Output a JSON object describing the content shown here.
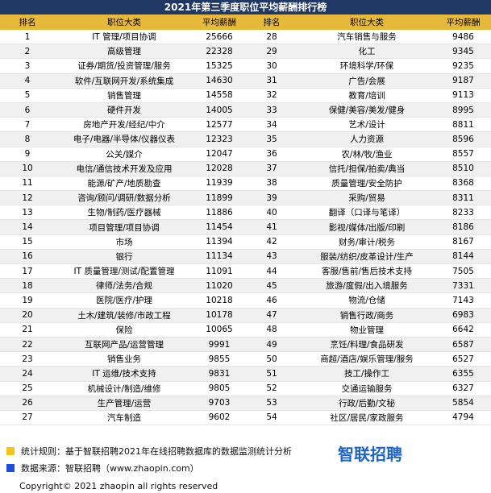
{
  "title": "2021年第三季度职位平均薪酬排行榜",
  "table": {
    "columns": [
      "排名",
      "职位大类",
      "平均薪酬",
      "排名",
      "职位大类",
      "平均薪酬"
    ],
    "rows": [
      [
        1,
        "IT 管理/项目协调",
        25666,
        28,
        "汽车销售与服务",
        9486
      ],
      [
        2,
        "高级管理",
        22328,
        29,
        "化工",
        9345
      ],
      [
        3,
        "证券/期货/投资管理/服务",
        15325,
        30,
        "环境科学/环保",
        9235
      ],
      [
        4,
        "软件/互联网开发/系统集成",
        14630,
        31,
        "广告/会展",
        9187
      ],
      [
        5,
        "销售管理",
        14558,
        32,
        "教育/培训",
        9113
      ],
      [
        6,
        "硬件开发",
        14005,
        33,
        "保健/美容/美发/健身",
        8995
      ],
      [
        7,
        "房地产开发/经纪/中介",
        12577,
        34,
        "艺术/设计",
        8811
      ],
      [
        8,
        "电子/电器/半导体/仪器仪表",
        12323,
        35,
        "人力资源",
        8596
      ],
      [
        9,
        "公关/媒介",
        12047,
        36,
        "农/林/牧/渔业",
        8557
      ],
      [
        10,
        "电信/通信技术开发及应用",
        12028,
        37,
        "信托/担保/拍卖/典当",
        8510
      ],
      [
        11,
        "能源/矿产/地质勘查",
        11939,
        38,
        "质量管理/安全防护",
        8368
      ],
      [
        12,
        "咨询/顾问/调研/数据分析",
        11899,
        39,
        "采购/贸易",
        8311
      ],
      [
        13,
        "生物/制药/医疗器械",
        11886,
        40,
        "翻译（口译与笔译）",
        8233
      ],
      [
        14,
        "项目管理/项目协调",
        11454,
        41,
        "影视/媒体/出版/印刷",
        8186
      ],
      [
        15,
        "市场",
        11394,
        42,
        "财务/审计/税务",
        8167
      ],
      [
        16,
        "银行",
        11134,
        43,
        "服装/纺织/皮革设计/生产",
        8144
      ],
      [
        17,
        "IT 质量管理/测试/配置管理",
        11091,
        44,
        "客服/售前/售后技术支持",
        7505
      ],
      [
        18,
        "律师/法务/合规",
        11020,
        45,
        "旅游/度假/出入境服务",
        7331
      ],
      [
        19,
        "医院/医疗/护理",
        10218,
        46,
        "物流/仓储",
        7143
      ],
      [
        20,
        "土木/建筑/装修/市政工程",
        10178,
        47,
        "销售行政/商务",
        6983
      ],
      [
        21,
        "保险",
        10065,
        48,
        "物业管理",
        6642
      ],
      [
        22,
        "互联网产品/运营管理",
        9991,
        49,
        "烹饪/料理/食品研发",
        6587
      ],
      [
        23,
        "销售业务",
        9855,
        50,
        "商超/酒店/娱乐管理/服务",
        6527
      ],
      [
        24,
        "IT 运维/技术支持",
        9831,
        51,
        "技工/操作工",
        6355
      ],
      [
        25,
        "机械设计/制造/维修",
        9805,
        52,
        "交通运输服务",
        6327
      ],
      [
        26,
        "生产管理/运营",
        9703,
        53,
        "行政/后勤/文秘",
        5854
      ],
      [
        27,
        "汽车制造",
        9602,
        54,
        "社区/居民/家政服务",
        4794
      ]
    ]
  },
  "footer": {
    "rule": "统计规则：基于智联招聘2021年在线招聘数据库的数据监测统计分析",
    "source": "数据来源：智联招聘（www.zhaopin.com）",
    "logo": "智联招聘",
    "copyright": "Copyright© 2021 zhaopin all rights reserved"
  }
}
